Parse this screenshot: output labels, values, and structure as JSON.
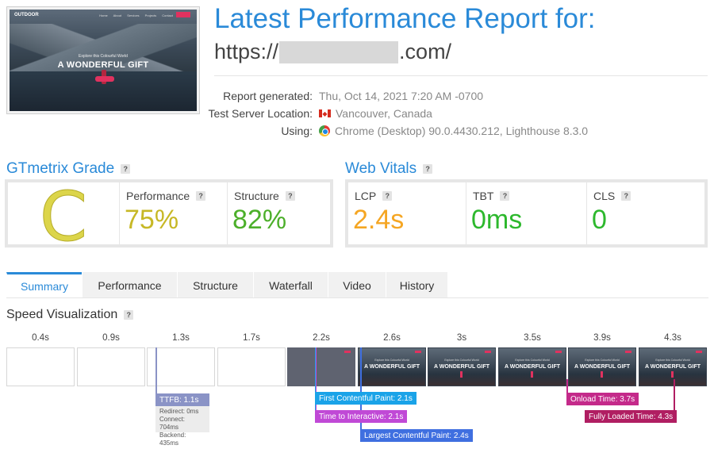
{
  "thumbnail": {
    "logo": "OUTDOOR",
    "nav": "Home About Services Projects Contact",
    "subtitle": "Explore this Colourful World",
    "title": "A WONDERFUL GIFT"
  },
  "header": {
    "title": "Latest Performance Report for:",
    "url_prefix": "https://",
    "url_suffix": ".com/"
  },
  "meta": [
    {
      "label": "Report generated:",
      "value": "Thu, Oct 14, 2021 7:20 AM -0700",
      "icon": ""
    },
    {
      "label": "Test Server Location:",
      "value": "Vancouver, Canada",
      "icon": "canada-flag-icon"
    },
    {
      "label": "Using:",
      "value": "Chrome (Desktop) 90.0.4430.212, Lighthouse 8.3.0",
      "icon": "chrome-icon"
    }
  ],
  "gtmetrix": {
    "title": "GTmetrix Grade",
    "help": "?",
    "grade": "C",
    "grade_color": "#dcd54a",
    "performance_label": "Performance",
    "performance_value": "75%",
    "performance_color": "#c7b826",
    "structure_label": "Structure",
    "structure_value": "82%",
    "structure_color": "#4caf2a"
  },
  "web_vitals": {
    "title": "Web Vitals",
    "help": "?",
    "lcp_label": "LCP",
    "lcp_value": "2.4s",
    "lcp_color": "#f5a623",
    "tbt_label": "TBT",
    "tbt_value": "0ms",
    "tbt_color": "#2db82d",
    "cls_label": "CLS",
    "cls_value": "0",
    "cls_color": "#2db82d"
  },
  "tabs": [
    "Summary",
    "Performance",
    "Structure",
    "Waterfall",
    "Video",
    "History"
  ],
  "active_tab": "Summary",
  "speed": {
    "title": "Speed Visualization",
    "help": "?",
    "ticks": [
      "0.4s",
      "0.9s",
      "1.3s",
      "1.7s",
      "2.2s",
      "2.6s",
      "3s",
      "3.5s",
      "3.9s",
      "4.3s"
    ],
    "frame_title": "A WONDERFUL GIFT",
    "frame_subtitle": "Explore this Colourful World",
    "markers": {
      "ttfb": "TTFB: 1.1s",
      "fcp": "First Contentful Paint: 2.1s",
      "tti": "Time to Interactive: 2.1s",
      "lcp": "Largest Contentful Paint: 2.4s",
      "onload": "Onload Time: 3.7s",
      "fully_loaded": "Fully Loaded Time: 4.3s"
    },
    "ttfb_detail": {
      "redirect": "Redirect: 0ms",
      "connect": "Connect: 704ms",
      "backend": "Backend: 435ms"
    },
    "colors": {
      "ttfb": "#8a93c6",
      "fcp": "#1aa3e8",
      "tti": "#c049d6",
      "lcp": "#3f6fe0",
      "onload": "#c42a8a",
      "fully_loaded": "#b01e62"
    }
  }
}
